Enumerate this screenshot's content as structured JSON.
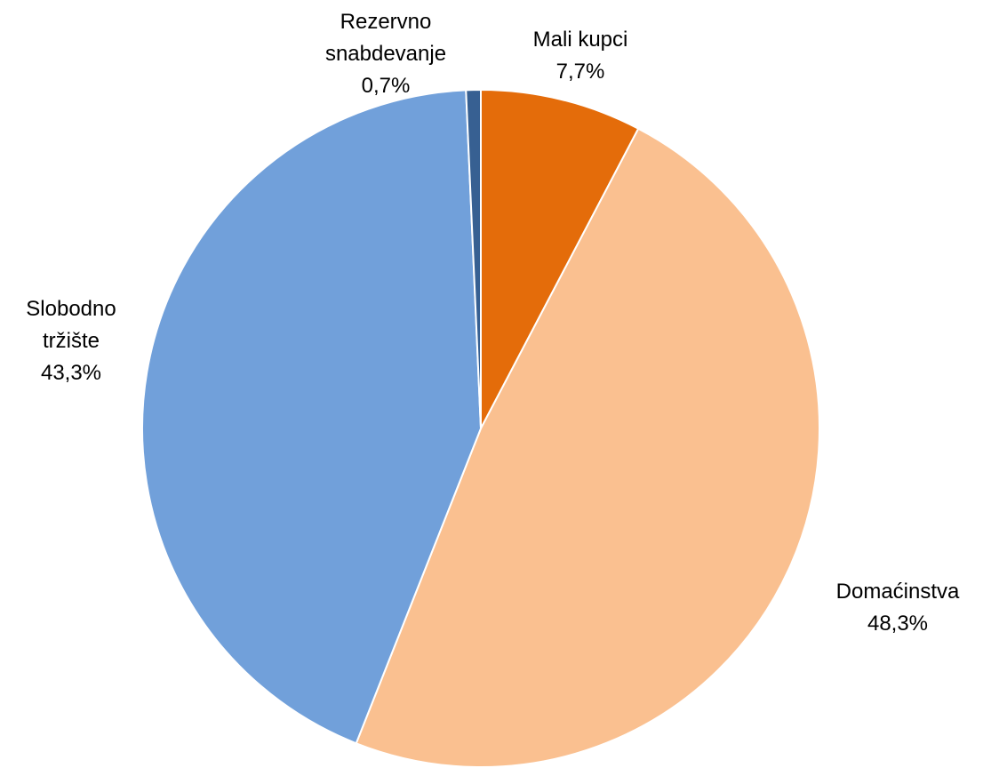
{
  "chart_data": {
    "type": "pie",
    "categories": [
      "Mali kupci",
      "Domaćinstva",
      "Slobodno tržište",
      "Rezervno snabdevanje"
    ],
    "values": [
      7.7,
      48.3,
      43.3,
      0.7
    ],
    "value_labels": [
      "7,7%",
      "48,3%",
      "43,3%",
      "0,7%"
    ],
    "colors": [
      "#e46c0a",
      "#fac090",
      "#71a0da",
      "#376092"
    ]
  }
}
